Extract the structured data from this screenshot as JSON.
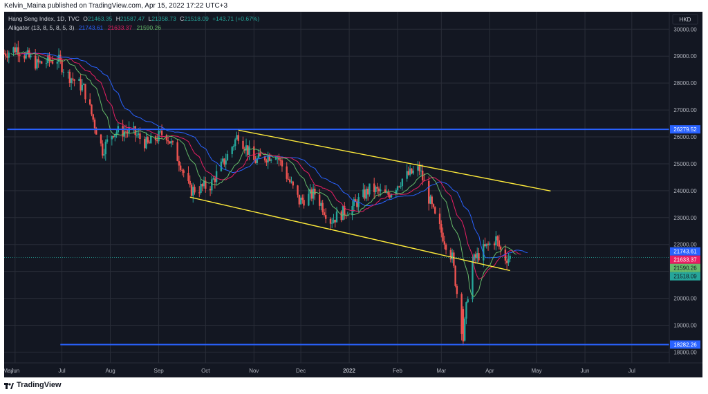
{
  "publish_line": "Kelvin_Maina published on TradingView.com, Apr 15, 2022 17:22 UTC+3",
  "legend": {
    "symbol": "Hang Seng Index, 1D, TVC",
    "o_label": "O",
    "o_value": "21463.35",
    "h_label": "H",
    "h_value": "21587.47",
    "l_label": "L",
    "l_value": "21358.73",
    "c_label": "C",
    "c_value": "21518.09",
    "change": "+143.71 (+0.67%)",
    "indicator": "Alligator (13, 8, 5, 8, 5, 3)",
    "jaw_value": "21743.61",
    "teeth_value": "21633.37",
    "lips_value": "21590.26"
  },
  "currency": "HKD",
  "brand": "TradingView",
  "colors": {
    "background": "#131722",
    "up": "#26a69a",
    "down": "#ef5350",
    "jaw": "#2962ff",
    "teeth": "#e91e63",
    "lips": "#66bb6a",
    "hline": "#2962ff",
    "channel": "#ffeb3b",
    "grid": "#2a2e39",
    "axis_text": "#b2b5be"
  },
  "y_axis_ticks": [
    "30000.00",
    "29000.00",
    "28000.00",
    "27000.00",
    "26000.00",
    "25000.00",
    "24000.00",
    "23000.00",
    "22000.00",
    "21000.00",
    "20000.00",
    "19000.00",
    "18000.00"
  ],
  "x_axis_labels": [
    "May",
    "Jun",
    "Jul",
    "Aug",
    "Sep",
    "Oct",
    "Nov",
    "Dec",
    "2022",
    "Feb",
    "Mar",
    "Apr",
    "May",
    "Jun",
    "Jul"
  ],
  "price_labels": {
    "resistance": "26279.52",
    "support": "18282.26",
    "jaw": "21743.61",
    "teeth": "21633.37",
    "lips": "21590.26",
    "last": "21518.09"
  },
  "chart_data": {
    "type": "candlestick",
    "ylim": [
      17600,
      30650
    ],
    "x_range": [
      "2021-05-25",
      "2022-07-25"
    ],
    "horizontal_levels": [
      {
        "value": 26279.52,
        "from": "2021-05-27",
        "to": "2022-07-25"
      },
      {
        "value": 18282.26,
        "from": "2021-06-30",
        "to": "2022-07-25"
      }
    ],
    "channel_lines": [
      {
        "from": [
          "2021-10-22",
          26250
        ],
        "to": [
          "2022-05-10",
          23990
        ]
      },
      {
        "from": [
          "2021-09-21",
          23760
        ],
        "to": [
          "2022-04-14",
          21030
        ]
      }
    ],
    "price_path": [
      [
        "2021-05-25",
        29100
      ],
      [
        "2021-06-02",
        29300
      ],
      [
        "2021-06-15",
        28700
      ],
      [
        "2021-06-28",
        28900
      ],
      [
        "2021-07-05",
        28300
      ],
      [
        "2021-07-15",
        27800
      ],
      [
        "2021-07-27",
        25500
      ],
      [
        "2021-08-03",
        26200
      ],
      [
        "2021-08-15",
        26200
      ],
      [
        "2021-08-25",
        25700
      ],
      [
        "2021-09-05",
        26200
      ],
      [
        "2021-09-15",
        25000
      ],
      [
        "2021-09-21",
        24000
      ],
      [
        "2021-10-04",
        24200
      ],
      [
        "2021-10-15",
        25300
      ],
      [
        "2021-10-22",
        26100
      ],
      [
        "2021-11-01",
        25100
      ],
      [
        "2021-11-15",
        25400
      ],
      [
        "2021-11-30",
        23600
      ],
      [
        "2021-12-10",
        23900
      ],
      [
        "2021-12-20",
        22900
      ],
      [
        "2022-01-03",
        23400
      ],
      [
        "2022-01-15",
        24100
      ],
      [
        "2022-01-25",
        23800
      ],
      [
        "2022-02-05",
        24500
      ],
      [
        "2022-02-15",
        24800
      ],
      [
        "2022-02-25",
        23000
      ],
      [
        "2022-03-08",
        21500
      ],
      [
        "2022-03-15",
        18500
      ],
      [
        "2022-03-20",
        21300
      ],
      [
        "2022-03-28",
        21800
      ],
      [
        "2022-04-05",
        22200
      ],
      [
        "2022-04-10",
        21500
      ],
      [
        "2022-04-14",
        21518
      ]
    ]
  }
}
